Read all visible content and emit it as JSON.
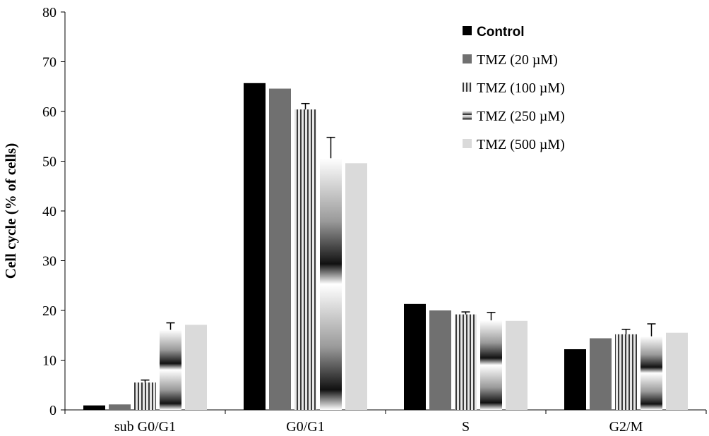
{
  "chart_data": {
    "type": "bar",
    "ylabel": "Cell cycle  (% of cells)",
    "xlabel": "",
    "ylim": [
      0,
      80
    ],
    "yticks": [
      "0",
      "10",
      "20",
      "30",
      "40",
      "50",
      "60",
      "70",
      "80"
    ],
    "grid": false,
    "legend_position": "top-right",
    "categories": [
      "sub G0/G1",
      "G0/G1",
      "S",
      "G2/M"
    ],
    "series": [
      {
        "name": "Control",
        "values": [
          0.9,
          65.7,
          21.3,
          12.2
        ],
        "errors": [
          null,
          null,
          null,
          null
        ],
        "fill": "#000000",
        "pattern": "solid"
      },
      {
        "name": "TMZ  (20 µM)",
        "values": [
          1.1,
          64.6,
          20.0,
          14.4
        ],
        "errors": [
          null,
          null,
          null,
          null
        ],
        "fill": "#707070",
        "pattern": "solid"
      },
      {
        "name": "TMZ  (100 µM)",
        "values": [
          5.5,
          60.4,
          19.2,
          15.2
        ],
        "errors": [
          0.5,
          1.2,
          0.5,
          1.0
        ],
        "fill": "#b0b0b0",
        "pattern": "vstripes"
      },
      {
        "name": "TMZ  (250 µM)",
        "values": [
          16.1,
          50.6,
          18.0,
          14.8
        ],
        "errors": [
          1.4,
          4.2,
          1.6,
          2.5
        ],
        "fill": "#a8a8a8",
        "pattern": "hgradient"
      },
      {
        "name": "TMZ  (500 µM)",
        "values": [
          17.1,
          49.6,
          17.9,
          15.5
        ],
        "errors": [
          null,
          null,
          null,
          null
        ],
        "fill": "#dadada",
        "pattern": "solid"
      }
    ]
  }
}
